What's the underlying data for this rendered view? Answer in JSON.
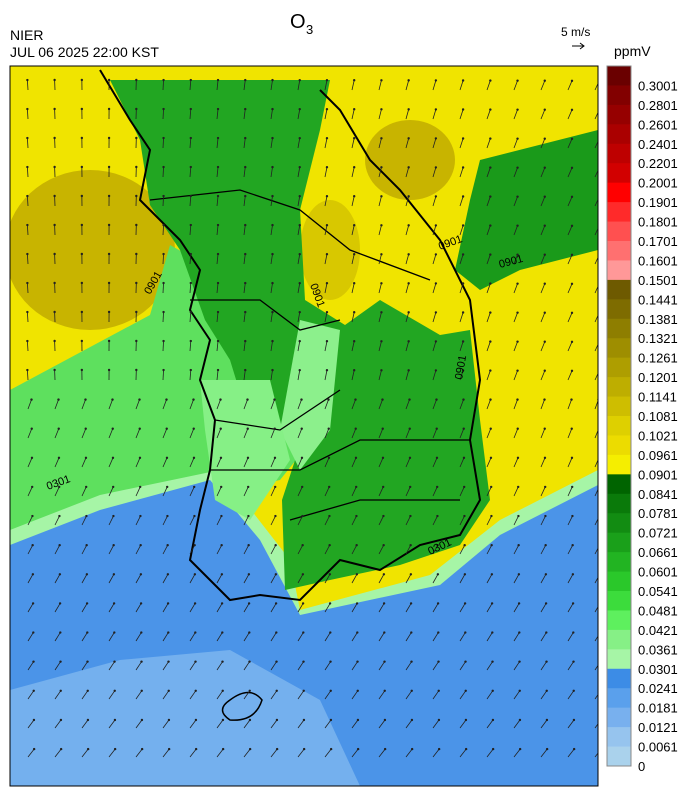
{
  "header": {
    "agency": "NIER",
    "datetime": "JUL 06 2025 22:00 KST",
    "title": {
      "text": "O",
      "subscript": "3"
    }
  },
  "wind_legend": {
    "label": "5 m/s"
  },
  "colorbar": {
    "unit": "ppmV",
    "ticks": [
      0.3001,
      0.2801,
      0.2601,
      0.2401,
      0.2201,
      0.2001,
      0.1901,
      0.1801,
      0.1701,
      0.1601,
      0.1501,
      0.1441,
      0.1381,
      0.1321,
      0.1261,
      0.1201,
      0.1141,
      0.1081,
      0.1021,
      0.0961,
      0.0901,
      0.0841,
      0.0781,
      0.0721,
      0.0661,
      0.0601,
      0.0541,
      0.0481,
      0.0421,
      0.0361,
      0.0301,
      0.0241,
      0.0181,
      0.0121,
      0.0061,
      0
    ],
    "colors": [
      "#6a0000",
      "#820000",
      "#960000",
      "#aa0000",
      "#be0000",
      "#d20000",
      "#ff0000",
      "#ff2a2a",
      "#ff5050",
      "#ff7070",
      "#ff9898",
      "#6e5a00",
      "#7e6c00",
      "#8e7e00",
      "#9e8e00",
      "#ae9e00",
      "#beae00",
      "#cebe00",
      "#ded000",
      "#ecdc00",
      "#f5ee00",
      "#006400",
      "#0a7a0a",
      "#128c12",
      "#1aa01a",
      "#22b422",
      "#2ac82a",
      "#3cdc3c",
      "#5ef05e",
      "#86f086",
      "#a6f5a6",
      "#3c8ce6",
      "#5aa0ec",
      "#78b0ee",
      "#96c4ee",
      "#aad2ec"
    ]
  },
  "map": {
    "contour_labels": [
      "0901",
      "0901",
      "0901",
      "0901",
      "0901",
      "0301",
      "0301"
    ]
  }
}
